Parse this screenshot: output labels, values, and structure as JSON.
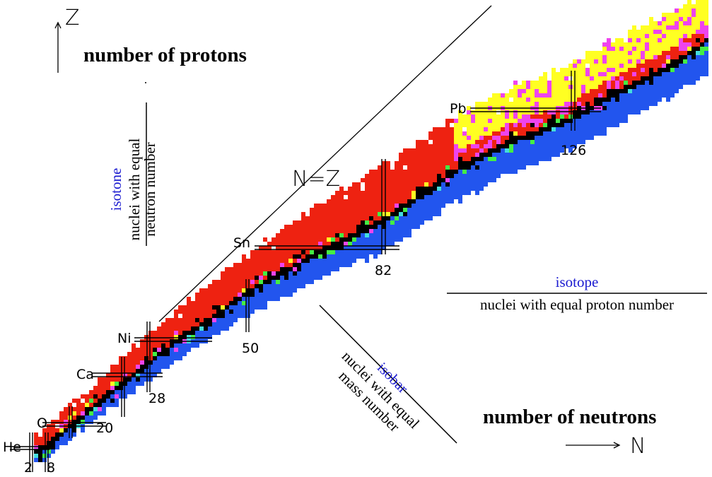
{
  "axes": {
    "z_symbol": "Z",
    "z_label": "number of protons",
    "n_symbol": "N",
    "n_label": "number of neutrons"
  },
  "line_label": "N=Z",
  "definitions": {
    "isotone_term": "isotone",
    "isotone_text_line1": "nuclei with equal",
    "isotone_text_line2": "neutron number",
    "isotope_term": "isotope",
    "isotope_text": "nuclei with equal proton number",
    "isobar_term": "isobar",
    "isobar_text_line1": "nuclei with equal",
    "isobar_text_line2": "mass number"
  },
  "elements": [
    "He",
    "O",
    "Ca",
    "Ni",
    "Sn",
    "Pb"
  ],
  "magic_numbers": [
    "2",
    "8",
    "20",
    "28",
    "50",
    "82",
    "126"
  ],
  "colors": {
    "proton_rich": "#ee2211",
    "neutron_rich": "#2255ee",
    "stable": "#000000",
    "alpha": "#ffff22",
    "fission": "#ee44ee",
    "other": "#44ee44",
    "extra": "#44dddd",
    "line": "#000000"
  }
}
